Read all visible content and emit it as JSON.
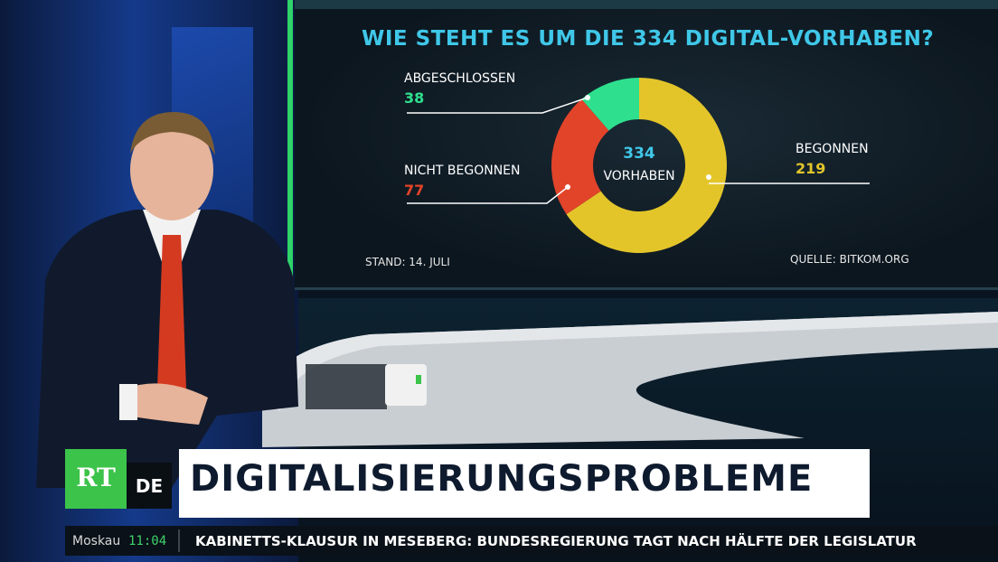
{
  "chart_data": {
    "type": "pie",
    "variant": "donut",
    "title": "WIE STEHT ES UM DIE 334 DIGITAL-VORHABEN?",
    "center_value": "334",
    "center_label": "VORHABEN",
    "slices": [
      {
        "label": "BEGONNEN",
        "value": 219,
        "value_text": "219",
        "color": "#e3c52a"
      },
      {
        "label": "NICHT BEGONNEN",
        "value": 77,
        "value_text": "77",
        "color": "#e2442a"
      },
      {
        "label": "ABGESCHLOSSEN",
        "value": 38,
        "value_text": "38",
        "color": "#2ee08e"
      }
    ],
    "footnote_left": "STAND: 14. JULI",
    "footnote_right": "QUELLE: BITKOM.ORG"
  },
  "colors": {
    "title": "#3fc7e8",
    "accent_green": "#3cc34a",
    "frame_green": "#2fd36a"
  },
  "lower_third": {
    "logo_rt": "RT",
    "logo_de": "DE",
    "headline": "DIGITALISIERUNGSPROBLEME"
  },
  "ticker": {
    "city": "Moskau",
    "time": "11:04",
    "text": "KABINETTS-KLAUSUR IN MESEBERG: BUNDESREGIERUNG TAGT NACH HÄLFTE DER LEGISLATUR"
  }
}
